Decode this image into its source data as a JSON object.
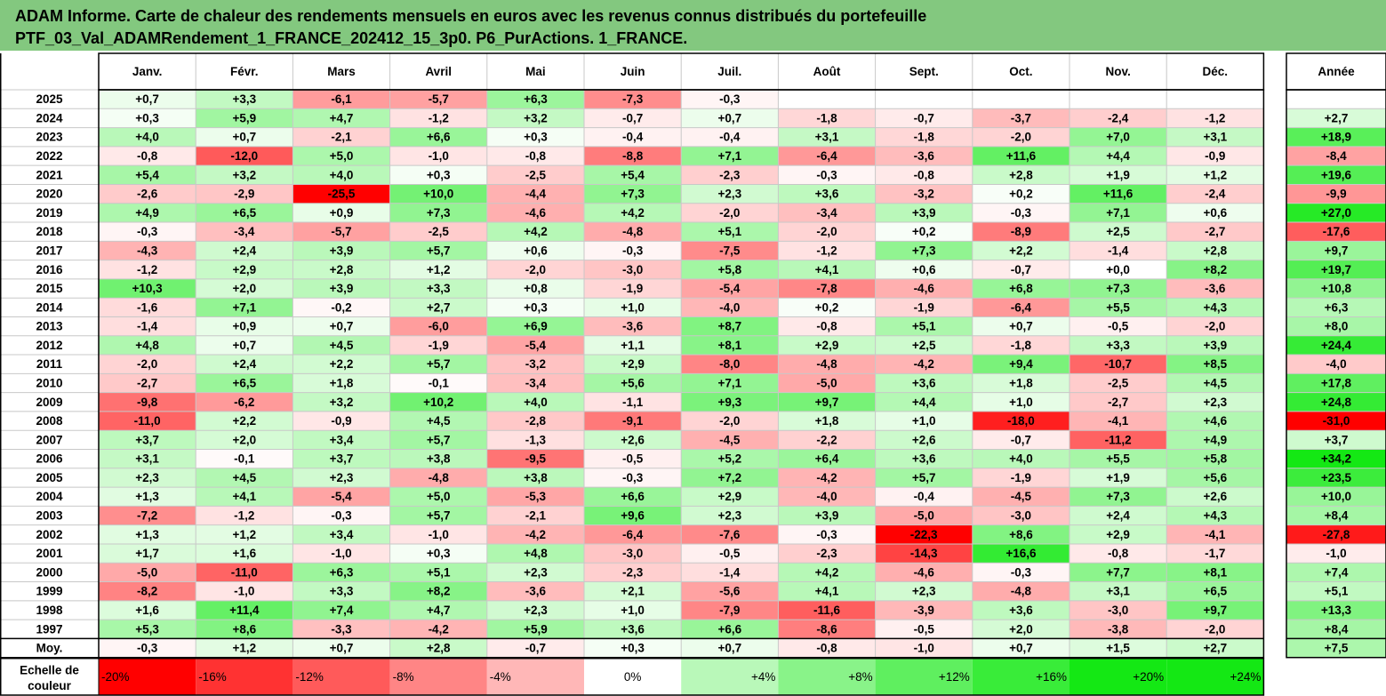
{
  "title": {
    "line1": "ADAM Informe. Carte de chaleur des rendements mensuels en euros avec les revenus connus distribués du portefeuille",
    "line2": "PTF_03_Val_ADAMRendement_1_FRANCE_202412_15_3p0. P6_PurActions. 1_FRANCE."
  },
  "chart_data": {
    "type": "heatmap",
    "columns": [
      "Janv.",
      "Févr.",
      "Mars",
      "Avril",
      "Mai",
      "Juin",
      "Juil.",
      "Août",
      "Sept.",
      "Oct.",
      "Nov.",
      "Déc."
    ],
    "year_header": "Année",
    "rows": [
      {
        "year": "2025",
        "values": [
          "+0,7",
          "+3,3",
          "-6,1",
          "-5,7",
          "+6,3",
          "-7,3",
          "-0,3",
          "",
          "",
          "",
          "",
          ""
        ],
        "annual": ""
      },
      {
        "year": "2024",
        "values": [
          "+0,3",
          "+5,9",
          "+4,7",
          "-1,2",
          "+3,2",
          "-0,7",
          "+0,7",
          "-1,8",
          "-0,7",
          "-3,7",
          "-2,4",
          "-1,2"
        ],
        "annual": "+2,7"
      },
      {
        "year": "2023",
        "values": [
          "+4,0",
          "+0,7",
          "-2,1",
          "+6,6",
          "+0,3",
          "-0,4",
          "-0,4",
          "+3,1",
          "-1,8",
          "-2,0",
          "+7,0",
          "+3,1"
        ],
        "annual": "+18,9"
      },
      {
        "year": "2022",
        "values": [
          "-0,8",
          "-12,0",
          "+5,0",
          "-1,0",
          "-0,8",
          "-8,8",
          "+7,1",
          "-6,4",
          "-3,6",
          "+11,6",
          "+4,4",
          "-0,9"
        ],
        "annual": "-8,4"
      },
      {
        "year": "2021",
        "values": [
          "+5,4",
          "+3,2",
          "+4,0",
          "+0,3",
          "-2,5",
          "+5,4",
          "-2,3",
          "-0,3",
          "-0,8",
          "+2,8",
          "+1,9",
          "+1,2"
        ],
        "annual": "+19,6"
      },
      {
        "year": "2020",
        "values": [
          "-2,6",
          "-2,9",
          "-25,5",
          "+10,0",
          "-4,4",
          "+7,3",
          "+2,3",
          "+3,6",
          "-3,2",
          "+0,2",
          "+11,6",
          "-2,4"
        ],
        "annual": "-9,9"
      },
      {
        "year": "2019",
        "values": [
          "+4,9",
          "+6,5",
          "+0,9",
          "+7,3",
          "-4,6",
          "+4,2",
          "-2,0",
          "-3,4",
          "+3,9",
          "-0,3",
          "+7,1",
          "+0,6"
        ],
        "annual": "+27,0"
      },
      {
        "year": "2018",
        "values": [
          "-0,3",
          "-3,4",
          "-5,7",
          "-2,5",
          "+4,2",
          "-4,8",
          "+5,1",
          "-2,0",
          "+0,2",
          "-8,9",
          "+2,5",
          "-2,7"
        ],
        "annual": "-17,6"
      },
      {
        "year": "2017",
        "values": [
          "-4,3",
          "+2,4",
          "+3,9",
          "+5,7",
          "+0,6",
          "-0,3",
          "-7,5",
          "-1,2",
          "+7,3",
          "+2,2",
          "-1,4",
          "+2,8"
        ],
        "annual": "+9,7"
      },
      {
        "year": "2016",
        "values": [
          "-1,2",
          "+2,9",
          "+2,8",
          "+1,2",
          "-2,0",
          "-3,0",
          "+5,8",
          "+4,1",
          "+0,6",
          "-0,7",
          "+0,0",
          "+8,2"
        ],
        "annual": "+19,7"
      },
      {
        "year": "2015",
        "values": [
          "+10,3",
          "+2,0",
          "+3,9",
          "+3,3",
          "+0,8",
          "-1,9",
          "-5,4",
          "-7,8",
          "-4,6",
          "+6,8",
          "+7,3",
          "-3,6"
        ],
        "annual": "+10,8"
      },
      {
        "year": "2014",
        "values": [
          "-1,6",
          "+7,1",
          "-0,2",
          "+2,7",
          "+0,3",
          "+1,0",
          "-4,0",
          "+0,2",
          "-1,9",
          "-6,4",
          "+5,5",
          "+4,3"
        ],
        "annual": "+6,3"
      },
      {
        "year": "2013",
        "values": [
          "-1,4",
          "+0,9",
          "+0,7",
          "-6,0",
          "+6,9",
          "-3,6",
          "+8,7",
          "-0,8",
          "+5,1",
          "+0,7",
          "-0,5",
          "-2,0"
        ],
        "annual": "+8,0"
      },
      {
        "year": "2012",
        "values": [
          "+4,8",
          "+0,7",
          "+4,5",
          "-1,9",
          "-5,4",
          "+1,1",
          "+8,1",
          "+2,9",
          "+2,5",
          "-1,8",
          "+3,3",
          "+3,9"
        ],
        "annual": "+24,4"
      },
      {
        "year": "2011",
        "values": [
          "-2,0",
          "+2,4",
          "+2,2",
          "+5,7",
          "-3,2",
          "+2,9",
          "-8,0",
          "-4,8",
          "-4,2",
          "+9,4",
          "-10,7",
          "+8,5"
        ],
        "annual": "-4,0"
      },
      {
        "year": "2010",
        "values": [
          "-2,7",
          "+6,5",
          "+1,8",
          "-0,1",
          "-3,4",
          "+5,6",
          "+7,1",
          "-5,0",
          "+3,6",
          "+1,8",
          "-2,5",
          "+4,5"
        ],
        "annual": "+17,8"
      },
      {
        "year": "2009",
        "values": [
          "-9,8",
          "-6,2",
          "+3,2",
          "+10,2",
          "+4,0",
          "-1,1",
          "+9,3",
          "+9,7",
          "+4,4",
          "+1,0",
          "-2,7",
          "+2,3"
        ],
        "annual": "+24,8"
      },
      {
        "year": "2008",
        "values": [
          "-11,0",
          "+2,2",
          "-0,9",
          "+4,5",
          "-2,8",
          "-9,1",
          "-2,0",
          "+1,8",
          "+1,0",
          "-18,0",
          "-4,1",
          "+4,6"
        ],
        "annual": "-31,0"
      },
      {
        "year": "2007",
        "values": [
          "+3,7",
          "+2,0",
          "+3,4",
          "+5,7",
          "-1,3",
          "+2,6",
          "-4,5",
          "-2,2",
          "+2,6",
          "-0,7",
          "-11,2",
          "+4,9"
        ],
        "annual": "+3,7"
      },
      {
        "year": "2006",
        "values": [
          "+3,1",
          "-0,1",
          "+3,7",
          "+3,8",
          "-9,5",
          "-0,5",
          "+5,2",
          "+6,4",
          "+3,6",
          "+4,0",
          "+5,5",
          "+5,8"
        ],
        "annual": "+34,2"
      },
      {
        "year": "2005",
        "values": [
          "+2,3",
          "+4,5",
          "+2,3",
          "-4,8",
          "+3,8",
          "-0,3",
          "+7,2",
          "-4,2",
          "+5,7",
          "-1,9",
          "+1,9",
          "+5,6"
        ],
        "annual": "+23,5"
      },
      {
        "year": "2004",
        "values": [
          "+1,3",
          "+4,1",
          "-5,4",
          "+5,0",
          "-5,3",
          "+6,6",
          "+2,9",
          "-4,0",
          "-0,4",
          "-4,5",
          "+7,3",
          "+2,6"
        ],
        "annual": "+10,0"
      },
      {
        "year": "2003",
        "values": [
          "-7,2",
          "-1,2",
          "-0,3",
          "+5,7",
          "-2,1",
          "+9,6",
          "+2,3",
          "+3,9",
          "-5,0",
          "-3,0",
          "+2,4",
          "+4,3"
        ],
        "annual": "+8,4"
      },
      {
        "year": "2002",
        "values": [
          "+1,3",
          "+1,2",
          "+3,4",
          "-1,0",
          "-4,2",
          "-6,4",
          "-7,6",
          "-0,3",
          "-22,3",
          "+8,6",
          "+2,9",
          "-4,1"
        ],
        "annual": "-27,8"
      },
      {
        "year": "2001",
        "values": [
          "+1,7",
          "+1,6",
          "-1,0",
          "+0,3",
          "+4,8",
          "-3,0",
          "-0,5",
          "-2,3",
          "-14,3",
          "+16,6",
          "-0,8",
          "-1,7"
        ],
        "annual": "-1,0"
      },
      {
        "year": "2000",
        "values": [
          "-5,0",
          "-11,0",
          "+6,3",
          "+5,1",
          "+2,3",
          "-2,3",
          "-1,4",
          "+4,2",
          "-4,6",
          "-0,3",
          "+7,7",
          "+8,1"
        ],
        "annual": "+7,4"
      },
      {
        "year": "1999",
        "values": [
          "-8,2",
          "-1,0",
          "+3,3",
          "+8,2",
          "-3,6",
          "+2,1",
          "-5,6",
          "+4,1",
          "+2,3",
          "-4,8",
          "+3,1",
          "+6,5"
        ],
        "annual": "+5,1"
      },
      {
        "year": "1998",
        "values": [
          "+1,6",
          "+11,4",
          "+7,4",
          "+4,7",
          "+2,3",
          "+1,0",
          "-7,9",
          "-11,6",
          "-3,9",
          "+3,6",
          "-3,0",
          "+9,7"
        ],
        "annual": "+13,3"
      },
      {
        "year": "1997",
        "values": [
          "+5,3",
          "+8,6",
          "-3,3",
          "-4,2",
          "+5,9",
          "+3,6",
          "+6,6",
          "-8,6",
          "-0,5",
          "+2,0",
          "-3,8",
          "-2,0"
        ],
        "annual": "+8,4"
      }
    ],
    "average_row": {
      "label": "Moy.",
      "values": [
        "-0,3",
        "+1,2",
        "+0,7",
        "+2,8",
        "-0,7",
        "+0,3",
        "+0,7",
        "-0,8",
        "-1,0",
        "+0,7",
        "+1,5",
        "+2,7"
      ],
      "annual": "+7,5"
    },
    "scale": {
      "label_line1": "Echelle de",
      "label_line2": "couleur",
      "steps": [
        {
          "value": -20,
          "label": "-20%"
        },
        {
          "value": -16,
          "label": "-16%"
        },
        {
          "value": -12,
          "label": "-12%"
        },
        {
          "value": -8,
          "label": "-8%"
        },
        {
          "value": -4,
          "label": "-4%"
        },
        {
          "value": 0,
          "label": "0%"
        },
        {
          "value": 4,
          "label": "+4%"
        },
        {
          "value": 8,
          "label": "+8%"
        },
        {
          "value": 12,
          "label": "+12%"
        },
        {
          "value": 16,
          "label": "+16%"
        },
        {
          "value": 20,
          "label": "+20%"
        },
        {
          "value": 24,
          "label": "+24%"
        }
      ]
    },
    "colors": {
      "negative_max": "#ff0000",
      "neutral": "#ffffff",
      "positive_max": "#00e600",
      "title_bg": "#83c87f",
      "grid": "#c8c8c8",
      "border": "#000000"
    }
  }
}
